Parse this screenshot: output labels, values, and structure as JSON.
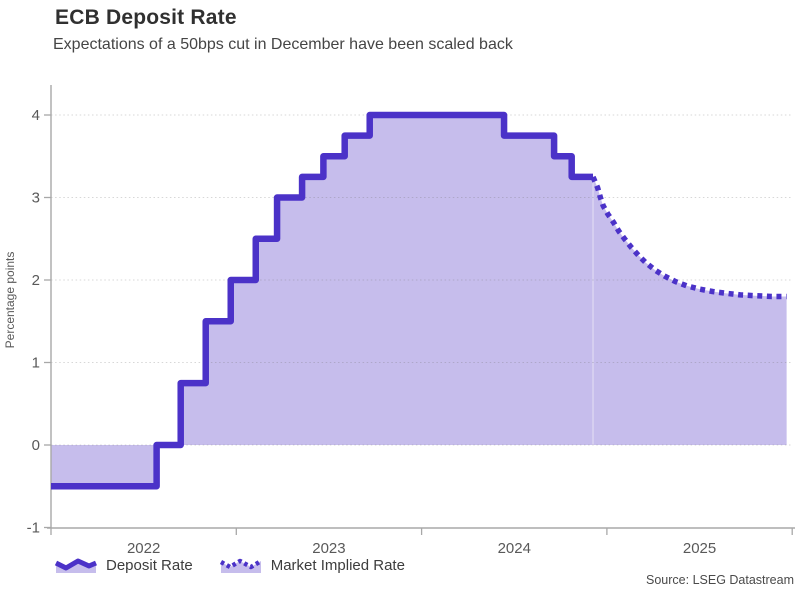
{
  "header": {
    "title": "ECB Deposit Rate",
    "subtitle": "Expectations of a 50bps cut in December have been scaled back"
  },
  "source": "Source: LSEG Datastream",
  "legend": {
    "items": [
      {
        "label": "Deposit Rate",
        "style": "solid"
      },
      {
        "label": "Market Implied Rate",
        "style": "dotted"
      }
    ]
  },
  "colors": {
    "line": "#4b32c8",
    "fill": "#c6bdec",
    "axis": "#a8a8a8",
    "grid": "rgba(110,110,110,0.28)",
    "tick_label": "#595959",
    "seam": "rgba(255,255,255,0.45)"
  },
  "chart_data": {
    "type": "area",
    "title": "ECB Deposit Rate",
    "subtitle": "Expectations of a 50bps cut in December have been scaled back",
    "xlabel": "",
    "ylabel": "Percentage points",
    "ylim": [
      -1,
      4.35
    ],
    "xlim": [
      2022.0,
      2026.0
    ],
    "x_ticks": [
      2022,
      2023,
      2024,
      2025
    ],
    "y_ticks": [
      -1,
      0,
      1,
      2,
      3,
      4
    ],
    "grid": "horizontal-dotted",
    "legend_position": "bottom-left",
    "baseline": 0,
    "series": [
      {
        "name": "Deposit Rate",
        "style": "solid",
        "step": true,
        "points": [
          [
            2022.0,
            -0.5
          ],
          [
            2022.57,
            0.0
          ],
          [
            2022.7,
            0.75
          ],
          [
            2022.835,
            1.5
          ],
          [
            2022.97,
            2.0
          ],
          [
            2023.105,
            2.5
          ],
          [
            2023.22,
            3.0
          ],
          [
            2023.355,
            3.25
          ],
          [
            2023.47,
            3.5
          ],
          [
            2023.585,
            3.75
          ],
          [
            2023.72,
            4.0
          ],
          [
            2024.445,
            3.75
          ],
          [
            2024.715,
            3.5
          ],
          [
            2024.81,
            3.25
          ],
          [
            2024.925,
            3.25
          ]
        ]
      },
      {
        "name": "Market Implied Rate",
        "style": "dotted",
        "step": false,
        "points": [
          [
            2024.925,
            3.25
          ],
          [
            2024.95,
            3.12
          ],
          [
            2024.965,
            3.0
          ],
          [
            2024.98,
            2.9
          ],
          [
            2025.005,
            2.8
          ],
          [
            2025.035,
            2.7
          ],
          [
            2025.065,
            2.59
          ],
          [
            2025.095,
            2.5
          ],
          [
            2025.13,
            2.4
          ],
          [
            2025.17,
            2.3
          ],
          [
            2025.21,
            2.21
          ],
          [
            2025.26,
            2.12
          ],
          [
            2025.31,
            2.05
          ],
          [
            2025.37,
            1.98
          ],
          [
            2025.43,
            1.93
          ],
          [
            2025.5,
            1.89
          ],
          [
            2025.57,
            1.86
          ],
          [
            2025.64,
            1.84
          ],
          [
            2025.72,
            1.82
          ],
          [
            2025.8,
            1.81
          ],
          [
            2025.89,
            1.8
          ],
          [
            2025.97,
            1.8
          ]
        ]
      }
    ]
  }
}
